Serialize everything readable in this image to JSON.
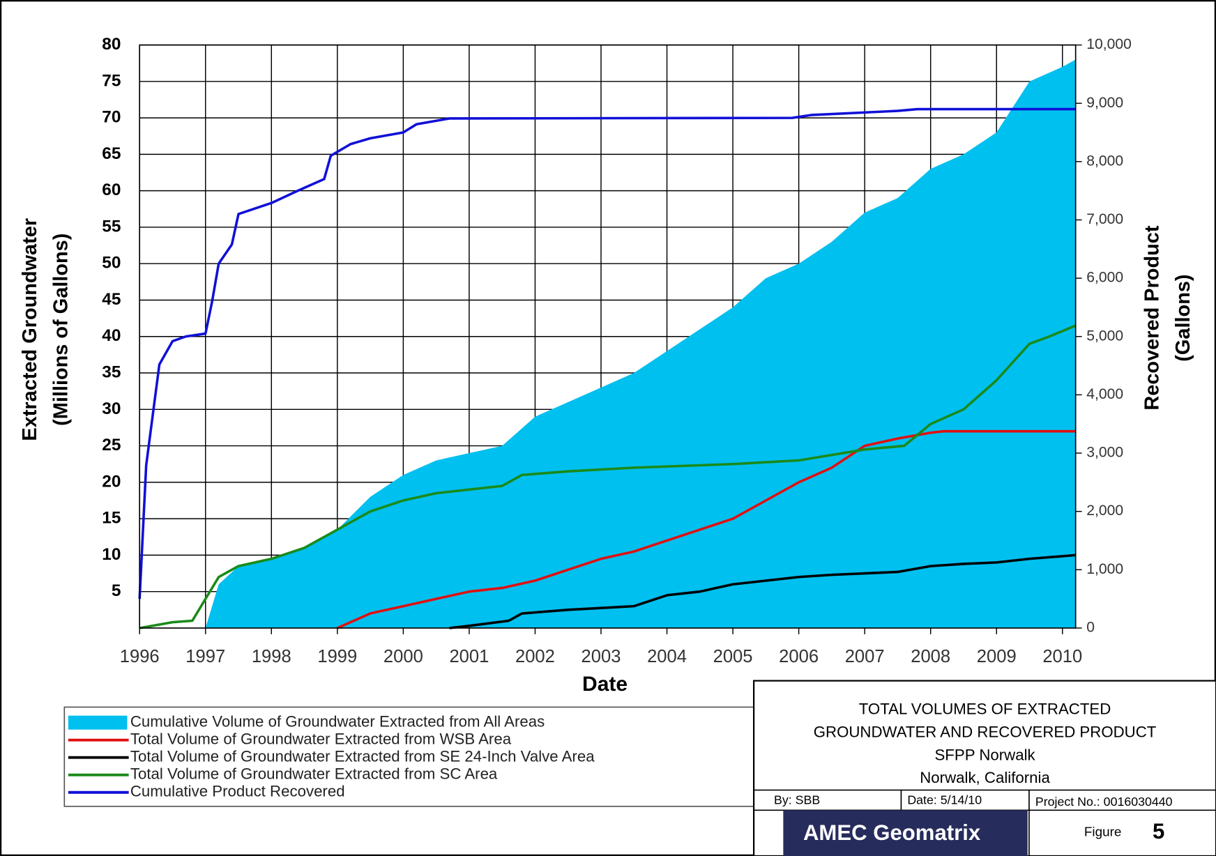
{
  "chart_data": {
    "type": "line",
    "xlabel": "Date",
    "ylabel": [
      "Extracted Groundwater",
      "(Millions of Gallons)"
    ],
    "y2label": [
      "Recovered Product",
      "(Gallons)"
    ],
    "xlim": [
      1996,
      2010.2
    ],
    "xticks": [
      1996,
      1997,
      1998,
      1999,
      2000,
      2001,
      2002,
      2003,
      2004,
      2005,
      2006,
      2007,
      2008,
      2009,
      2010
    ],
    "ylim": [
      0,
      80
    ],
    "yticks": [
      5,
      10,
      15,
      20,
      25,
      30,
      35,
      40,
      45,
      50,
      55,
      60,
      65,
      70,
      75,
      80
    ],
    "y2lim": [
      0,
      10000
    ],
    "y2ticks": [
      0,
      {
        "value": 1000,
        "label": "1,000"
      },
      {
        "value": 2000,
        "label": "2,000"
      },
      {
        "value": 3000,
        "label": "3,000"
      },
      {
        "value": 4000,
        "label": "4,000"
      },
      {
        "value": 5000,
        "label": "5,000"
      },
      {
        "value": 6000,
        "label": "6,000"
      },
      {
        "value": 7000,
        "label": "7,000"
      },
      {
        "value": 8000,
        "label": "8,000"
      },
      {
        "value": 9000,
        "label": "9,000"
      },
      {
        "value": 10000,
        "label": "10,000"
      }
    ],
    "grid": true,
    "legend": "bottom-left",
    "series": [
      {
        "name": "Cumulative Volume of Groundwater Extracted from All Areas",
        "color": "#00c0ef",
        "area": true,
        "x": [
          1997.0,
          1997.2,
          1997.5,
          1998.0,
          1998.5,
          1999.0,
          1999.5,
          2000.0,
          2000.5,
          2001.0,
          2001.5,
          2002.0,
          2002.5,
          2003.0,
          2003.5,
          2004.0,
          2004.5,
          2005.0,
          2005.5,
          2006.0,
          2006.5,
          2007.0,
          2007.5,
          2008.0,
          2008.5,
          2009.0,
          2009.5,
          2010.0,
          2010.2
        ],
        "values": [
          0,
          6,
          8.5,
          9.5,
          11,
          13.5,
          18,
          21,
          23,
          24,
          25,
          29,
          31,
          33,
          35,
          38,
          41,
          44,
          48,
          50,
          53,
          57,
          59,
          63,
          65,
          68,
          75,
          77,
          78
        ]
      },
      {
        "name": "Total Volume of Groundwater Extracted from WSB Area",
        "color": "#e01010",
        "x": [
          1999.0,
          1999.5,
          2000.0,
          2000.5,
          2001.0,
          2001.5,
          2002.0,
          2002.5,
          2003.0,
          2003.5,
          2004.0,
          2004.5,
          2005.0,
          2005.5,
          2006.0,
          2006.5,
          2007.0,
          2007.5,
          2008.0,
          2008.2,
          2010.2
        ],
        "values": [
          0,
          2,
          3,
          4,
          5,
          5.5,
          6.5,
          8,
          9.5,
          10.5,
          12,
          13.5,
          15,
          17.5,
          20,
          22,
          25,
          26,
          26.8,
          27,
          27
        ]
      },
      {
        "name": "Total Volume of Groundwater Extracted from SE 24-Inch Valve Area",
        "color": "#000000",
        "x": [
          2000.7,
          2001.0,
          2001.6,
          2001.8,
          2002.5,
          2003.5,
          2004.0,
          2004.5,
          2005.0,
          2005.5,
          2006.0,
          2006.5,
          2007.0,
          2007.5,
          2008.0,
          2008.5,
          2009.0,
          2009.5,
          2010.2
        ],
        "values": [
          0,
          0.3,
          1,
          2,
          2.5,
          3,
          4.5,
          5,
          6,
          6.5,
          7,
          7.3,
          7.5,
          7.7,
          8.5,
          8.8,
          9,
          9.5,
          10
        ]
      },
      {
        "name": "Total Volume of Groundwater Extracted from SC Area",
        "color": "#1a8a1a",
        "x": [
          1996.0,
          1996.5,
          1996.8,
          1997.0,
          1997.2,
          1997.5,
          1998.0,
          1998.5,
          1999.0,
          1999.5,
          2000.0,
          2000.5,
          2001.0,
          2001.5,
          2001.8,
          2002.5,
          2003.5,
          2005.0,
          2006.0,
          2007.0,
          2007.6,
          2008.0,
          2008.5,
          2009.0,
          2009.5,
          2009.8,
          2010.2
        ],
        "values": [
          0,
          0.8,
          1,
          4,
          7,
          8.5,
          9.5,
          11,
          13.5,
          16,
          17.5,
          18.5,
          19,
          19.5,
          21,
          21.5,
          22,
          22.5,
          23,
          24.5,
          25,
          28,
          30,
          34,
          39,
          40,
          41.5
        ]
      },
      {
        "name": "Cumulative Product Recovered",
        "color": "#1010d8",
        "axis": "y2",
        "x": [
          1996.0,
          1996.1,
          1996.3,
          1996.5,
          1996.7,
          1997.0,
          1997.1,
          1997.2,
          1997.4,
          1997.5,
          1998.0,
          1998.4,
          1998.8,
          1998.9,
          1999.2,
          1999.5,
          2000.0,
          2000.2,
          2000.7,
          2005.9,
          2006.2,
          2007.5,
          2007.8,
          2010.2
        ],
        "values": [
          500,
          2790,
          4520,
          4920,
          5000,
          5050,
          5600,
          6250,
          6580,
          7100,
          7290,
          7500,
          7700,
          8100,
          8300,
          8400,
          8500,
          8640,
          8740,
          8750,
          8800,
          8870,
          8900,
          8900
        ]
      }
    ],
    "title_block": {
      "title": [
        "TOTAL VOLUMES OF EXTRACTED",
        "GROUNDWATER AND RECOVERED PRODUCT",
        "SFPP Norwalk",
        "Norwalk, California"
      ],
      "by": "By: SBB",
      "date": "Date: 5/14/10",
      "project": "Project No.: 0016030440",
      "logo": "AMEC Geomatrix",
      "figure_label": "Figure",
      "figure_number": "5"
    }
  }
}
